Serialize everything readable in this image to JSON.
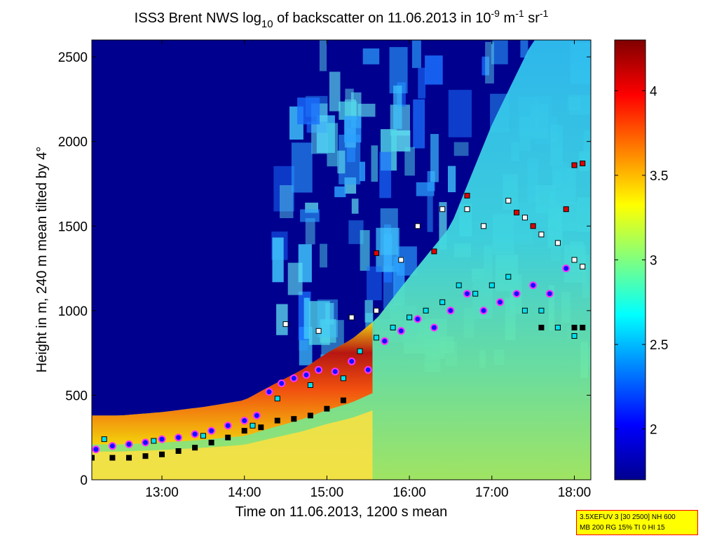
{
  "chart_data": {
    "type": "heatmap",
    "title": {
      "prefix": "ISS3 Brent NWS log",
      "prefix_sub": "10",
      "middle": " of backscatter on 11.06.2013 in 10",
      "unit_exp1": "-9",
      "unit_mid": " m",
      "unit_exp2": "-1",
      "unit_mid2": " sr",
      "unit_exp3": "-1"
    },
    "xlabel": "Time on 11.06.2013, 1200 s mean",
    "ylabel": "Height in m, 240 m mean tilted by 4°",
    "xlim": [
      12.15,
      18.2
    ],
    "ylim": [
      0,
      2600
    ],
    "xticks": [
      {
        "value": 13,
        "label": "13:00"
      },
      {
        "value": 14,
        "label": "14:00"
      },
      {
        "value": 15,
        "label": "15:00"
      },
      {
        "value": 16,
        "label": "16:00"
      },
      {
        "value": 17,
        "label": "17:00"
      },
      {
        "value": 18,
        "label": "18:00"
      }
    ],
    "yticks": [
      {
        "value": 0,
        "label": "0"
      },
      {
        "value": 500,
        "label": "500"
      },
      {
        "value": 1000,
        "label": "1000"
      },
      {
        "value": 1500,
        "label": "1500"
      },
      {
        "value": 2000,
        "label": "2000"
      },
      {
        "value": 2500,
        "label": "2500"
      }
    ],
    "colorbar": {
      "range": [
        1.7,
        4.3
      ],
      "colormap": "jet",
      "ticks": [
        {
          "value": 2,
          "label": "2"
        },
        {
          "value": 2.5,
          "label": "2.5"
        },
        {
          "value": 3,
          "label": "3"
        },
        {
          "value": 3.5,
          "label": "3.5"
        },
        {
          "value": 4,
          "label": "4"
        }
      ]
    },
    "boundary_layer_top": {
      "x": [
        12.15,
        12.5,
        13.0,
        13.5,
        14.0,
        14.3,
        14.7,
        15.0,
        15.3,
        15.6,
        16.0,
        16.5,
        17.0,
        17.5,
        18.0,
        18.2
      ],
      "y": [
        380,
        380,
        400,
        430,
        470,
        550,
        650,
        750,
        830,
        950,
        1200,
        1500,
        2100,
        2600,
        2600,
        2600
      ]
    },
    "series": [
      {
        "marker": "black-square",
        "x": [
          12.15,
          12.4,
          12.6,
          12.8,
          13.0,
          13.2,
          13.4,
          13.6,
          13.8,
          14.0,
          14.2,
          14.4,
          14.6,
          14.8,
          15.0,
          15.2,
          17.6,
          17.8,
          18.0,
          18.1
        ],
        "y": [
          130,
          130,
          130,
          140,
          150,
          170,
          190,
          220,
          250,
          290,
          310,
          350,
          360,
          380,
          420,
          470,
          900,
          900,
          900,
          900
        ]
      },
      {
        "marker": "blue-circle-magenta-edge",
        "x": [
          12.2,
          12.4,
          12.6,
          12.8,
          13.0,
          13.2,
          13.4,
          13.6,
          13.8,
          14.0,
          14.15,
          14.3,
          14.45,
          14.6,
          14.75,
          14.9,
          15.1,
          15.3,
          15.5,
          15.7,
          15.9,
          16.1,
          16.3,
          16.5,
          16.7,
          16.9,
          17.1,
          17.3,
          17.5,
          17.7,
          17.9
        ],
        "y": [
          180,
          200,
          210,
          220,
          240,
          250,
          270,
          290,
          320,
          350,
          380,
          520,
          570,
          600,
          620,
          650,
          640,
          700,
          650,
          820,
          880,
          950,
          900,
          1000,
          1100,
          1000,
          1050,
          1100,
          1150,
          1100,
          1250
        ]
      },
      {
        "marker": "cyan-square",
        "x": [
          12.3,
          12.9,
          13.5,
          14.1,
          14.4,
          14.8,
          15.2,
          15.4,
          15.6,
          15.8,
          16.0,
          16.2,
          16.4,
          16.6,
          16.8,
          17.0,
          17.2,
          17.4,
          17.6,
          17.8,
          18.0
        ],
        "y": [
          240,
          230,
          260,
          320,
          480,
          560,
          600,
          760,
          840,
          900,
          960,
          1000,
          1050,
          1150,
          1100,
          1150,
          1200,
          1000,
          1000,
          900,
          850
        ]
      },
      {
        "marker": "white-square",
        "x": [
          14.5,
          14.9,
          15.3,
          15.6,
          15.9,
          16.1,
          16.4,
          16.7,
          16.9,
          17.2,
          17.4,
          17.6,
          17.8,
          18.0,
          18.1
        ],
        "y": [
          920,
          880,
          960,
          1000,
          1300,
          1500,
          1600,
          1600,
          1500,
          1650,
          1550,
          1450,
          1400,
          1300,
          1260
        ]
      },
      {
        "marker": "red-square",
        "x": [
          15.6,
          16.3,
          16.7,
          17.3,
          17.5,
          17.9,
          18.0,
          18.1
        ],
        "y": [
          1340,
          1350,
          1680,
          1580,
          1500,
          1600,
          1860,
          1870
        ]
      }
    ]
  },
  "info_box": {
    "line1": "3.5XEFUV 3 [30 2500] NH 600",
    "line2": "MB 200 RG 15% TI 0 HI 15"
  }
}
